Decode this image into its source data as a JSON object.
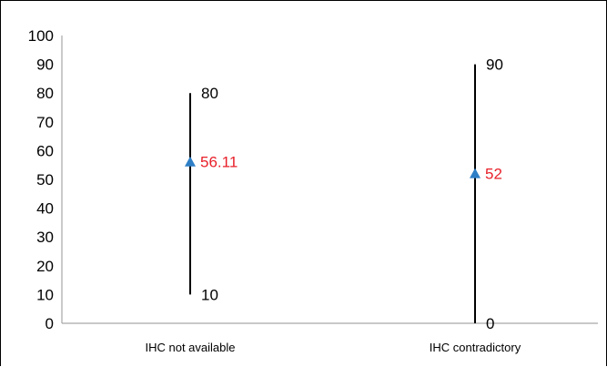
{
  "chart_data": {
    "type": "range",
    "title": "",
    "xlabel": "",
    "ylabel": "",
    "ylim": [
      0,
      100
    ],
    "y_ticks": [
      0,
      10,
      20,
      30,
      40,
      50,
      60,
      70,
      80,
      90,
      100
    ],
    "categories": [
      "IHC not available",
      "IHC contradictory"
    ],
    "series": [
      {
        "name": "",
        "min": [
          10,
          0
        ],
        "max": [
          80,
          90
        ],
        "mean": [
          56.11,
          52
        ]
      }
    ],
    "point_labels": {
      "min": [
        "10",
        "0"
      ],
      "max": [
        "80",
        "90"
      ],
      "mean": [
        "56.11",
        "52"
      ]
    },
    "colors": {
      "range_line": "#000000",
      "mean_marker": "#2e7fc6",
      "mean_label": "#e8202a",
      "axis": "#a6a6a6"
    },
    "grid": false,
    "legend": "none"
  }
}
